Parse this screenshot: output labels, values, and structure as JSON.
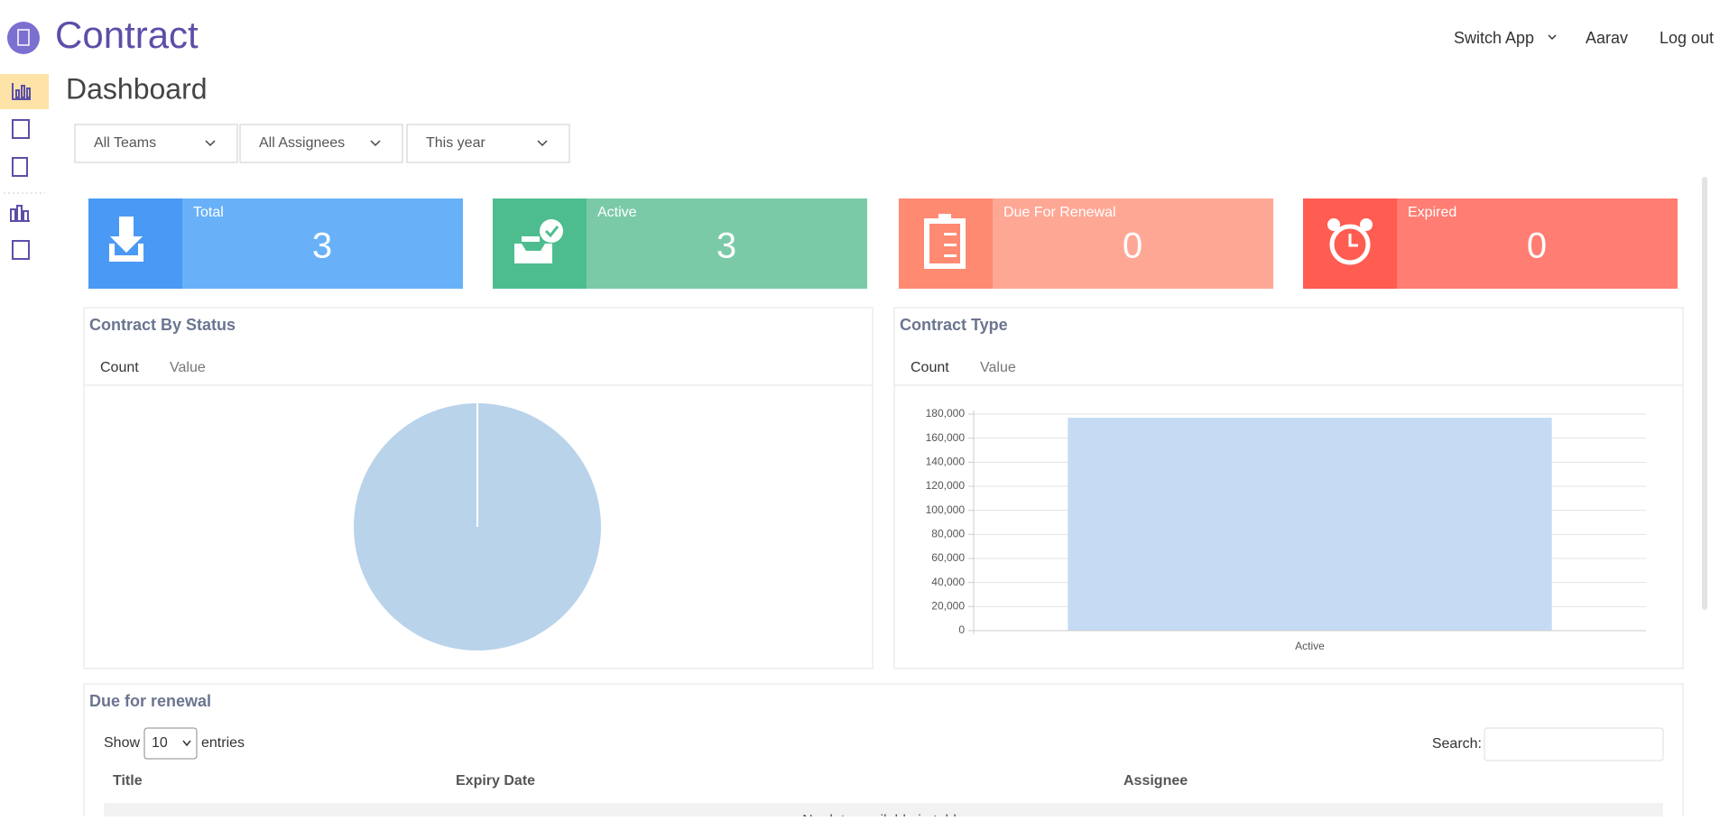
{
  "header": {
    "app_title": "Contract",
    "nav": [
      "Switch App",
      "Aarav",
      "Log out"
    ]
  },
  "page_title": "Dashboard",
  "filters": [
    "All Teams",
    "All Assignees",
    "This year"
  ],
  "cards": [
    {
      "label": "Total",
      "value": 3,
      "icon_color": "#4a9af5",
      "color": "#68b1f8"
    },
    {
      "label": "Active",
      "value": 3,
      "icon_color": "#4dbd8f",
      "color": "#7acaa8"
    },
    {
      "label": "Due For Renewal",
      "value": 0,
      "icon_color": "#fe8a72",
      "color": "#ffa795"
    },
    {
      "label": "Expired",
      "value": 0,
      "icon_color": "#ff5c52",
      "color": "#ff7d72"
    }
  ],
  "chart_data": [
    {
      "type": "pie",
      "title": "Contract By Status",
      "tabs": [
        "Count",
        "Value"
      ],
      "categories": [
        null
      ],
      "values": [
        3
      ],
      "colors": [
        "#b9d3ea"
      ]
    },
    {
      "type": "bar",
      "title": "Contract Type",
      "tabs": [
        "Count",
        "Value"
      ],
      "categories": [
        "Active"
      ],
      "values": [
        177000
      ],
      "color": "#c6dbf3",
      "ylim": [
        0,
        180000
      ],
      "yticks": [
        0,
        {
          "value": 20000,
          "label": "20,000"
        },
        {
          "value": 40000,
          "label": "40,000"
        },
        {
          "value": 60000,
          "label": "60,000"
        },
        {
          "value": 80000,
          "label": "80,000"
        },
        {
          "value": 100000,
          "label": "100,000"
        },
        {
          "value": 120000,
          "label": "120,000"
        },
        {
          "value": 140000,
          "label": "140,000"
        },
        {
          "value": 160000,
          "label": "160,000"
        },
        {
          "value": 180000,
          "label": "180,000"
        }
      ],
      "grid": true
    }
  ],
  "table": {
    "title": "Due for renewal",
    "length_before": "Show",
    "length_value": "10",
    "length_after": "entries",
    "search_label": "Search:",
    "columns": [
      "Title",
      "Expiry Date",
      "Assignee"
    ],
    "empty": "No data available in table"
  }
}
